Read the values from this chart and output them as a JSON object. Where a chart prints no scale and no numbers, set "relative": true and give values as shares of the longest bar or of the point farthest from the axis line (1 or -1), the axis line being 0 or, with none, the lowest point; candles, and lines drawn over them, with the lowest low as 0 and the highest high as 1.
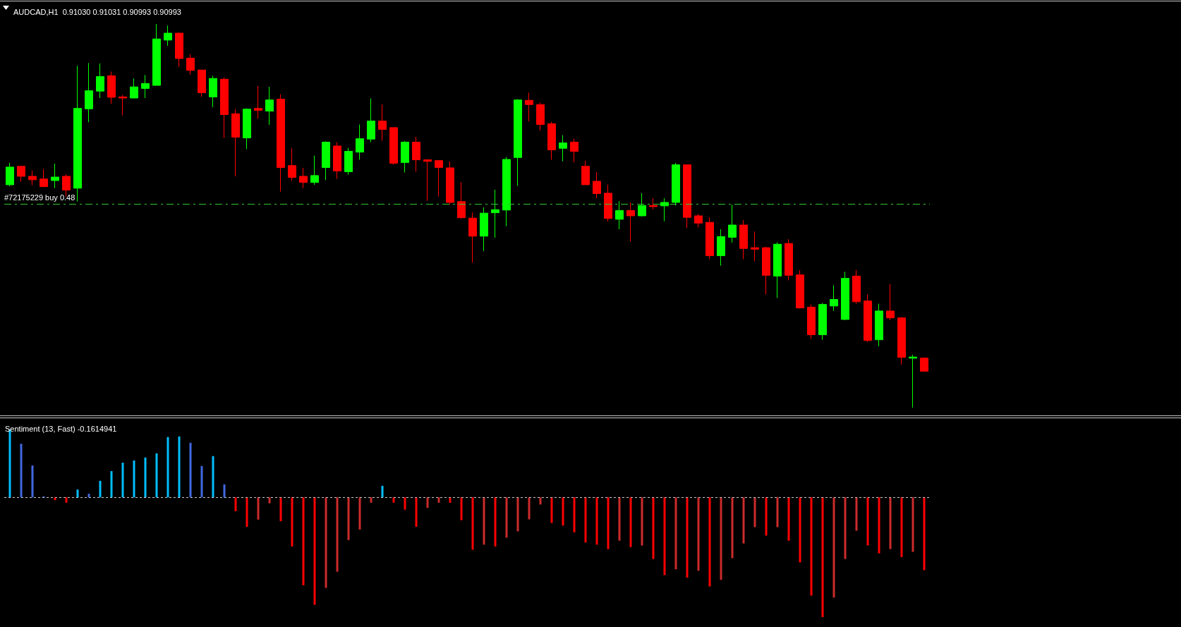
{
  "chart_data": [
    {
      "type": "candlestick",
      "title": "AUDCAD,H1  0.91030 0.91031 0.90993 0.90993",
      "relative": true,
      "categories": [
        null,
        null,
        null,
        null,
        null,
        null,
        null,
        null,
        null,
        null,
        null,
        null,
        null,
        null,
        null,
        null,
        null,
        null,
        null,
        null,
        null,
        null,
        null,
        null,
        null,
        null,
        null,
        null,
        null,
        null,
        null,
        null,
        null,
        null,
        null,
        null,
        null,
        null,
        null,
        null,
        null,
        null,
        null,
        null,
        null,
        null,
        null,
        null,
        null,
        null,
        null,
        null,
        null,
        null,
        null,
        null,
        null,
        null,
        null,
        null,
        null,
        null,
        null,
        null,
        null,
        null,
        null,
        null,
        null,
        null,
        null,
        null,
        null,
        null,
        null,
        null,
        null,
        null,
        null,
        null,
        null,
        null
      ],
      "ohlc": [
        [
          0.581,
          0.638,
          0.577,
          0.627
        ],
        [
          0.629,
          0.629,
          0.589,
          0.603
        ],
        [
          0.603,
          0.618,
          0.58,
          0.594
        ],
        [
          0.596,
          0.622,
          0.576,
          0.576
        ],
        [
          0.592,
          0.636,
          0.572,
          0.601
        ],
        [
          0.603,
          0.608,
          0.55,
          0.567
        ],
        [
          0.572,
          0.891,
          0.537,
          0.78
        ],
        [
          0.779,
          0.898,
          0.744,
          0.826
        ],
        [
          0.825,
          0.897,
          0.807,
          0.863
        ],
        [
          0.865,
          0.876,
          0.792,
          0.809
        ],
        [
          0.81,
          0.815,
          0.762,
          0.807
        ],
        [
          0.807,
          0.858,
          0.807,
          0.836
        ],
        [
          0.832,
          0.867,
          0.807,
          0.845
        ],
        [
          0.84,
          1,
          0.84,
          0.961
        ],
        [
          0.958,
          0.996,
          0.943,
          0.976
        ],
        [
          0.976,
          0.978,
          0.888,
          0.91
        ],
        [
          0.911,
          0.921,
          0.868,
          0.879
        ],
        [
          0.88,
          0.88,
          0.81,
          0.821
        ],
        [
          0.81,
          0.865,
          0.783,
          0.858
        ],
        [
          0.856,
          0.86,
          0.703,
          0.764
        ],
        [
          0.766,
          0.778,
          0.603,
          0.705
        ],
        [
          0.703,
          0.78,
          0.674,
          0.778
        ],
        [
          0.78,
          0.838,
          0.753,
          0.775
        ],
        [
          0.773,
          0.836,
          0.737,
          0.802
        ],
        [
          0.804,
          0.817,
          0.563,
          0.626
        ],
        [
          0.631,
          0.677,
          0.591,
          0.6
        ],
        [
          0.603,
          0.625,
          0.572,
          0.587
        ],
        [
          0.587,
          0.657,
          0.581,
          0.605
        ],
        [
          0.626,
          0.694,
          0.593,
          0.692
        ],
        [
          0.682,
          0.692,
          0.596,
          0.617
        ],
        [
          0.615,
          0.677,
          0.607,
          0.668
        ],
        [
          0.666,
          0.738,
          0.646,
          0.701
        ],
        [
          0.7,
          0.806,
          0.692,
          0.747
        ],
        [
          0.747,
          0.79,
          0.696,
          0.725
        ],
        [
          0.73,
          0.73,
          0.633,
          0.637
        ],
        [
          0.639,
          0.695,
          0.613,
          0.692
        ],
        [
          0.692,
          0.706,
          0.615,
          0.646
        ],
        [
          0.646,
          0.647,
          0.539,
          0.642
        ],
        [
          0.644,
          0.644,
          0.55,
          0.626
        ],
        [
          0.625,
          0.642,
          0.53,
          0.535
        ],
        [
          0.537,
          0.588,
          0.493,
          0.495
        ],
        [
          0.494,
          0.509,
          0.378,
          0.447
        ],
        [
          0.447,
          0.522,
          0.408,
          0.507
        ],
        [
          0.508,
          0.568,
          0.443,
          0.516
        ],
        [
          0.515,
          0.653,
          0.473,
          0.647
        ],
        [
          0.652,
          0.804,
          0.578,
          0.802
        ],
        [
          0.801,
          0.821,
          0.746,
          0.79
        ],
        [
          0.79,
          0.795,
          0.722,
          0.738
        ],
        [
          0.74,
          0.745,
          0.646,
          0.672
        ],
        [
          0.676,
          0.71,
          0.642,
          0.69
        ],
        [
          0.692,
          0.701,
          0.639,
          0.668
        ],
        [
          0.629,
          0.644,
          0.581,
          0.581
        ],
        [
          0.59,
          0.614,
          0.546,
          0.558
        ],
        [
          0.559,
          0.581,
          0.485,
          0.493
        ],
        [
          0.491,
          0.538,
          0.465,
          0.514
        ],
        [
          0.514,
          0.535,
          0.433,
          0.5
        ],
        [
          0.5,
          0.559,
          0.498,
          0.527
        ],
        [
          0.527,
          0.546,
          0.517,
          0.524
        ],
        [
          0.526,
          0.546,
          0.486,
          0.535
        ],
        [
          0.535,
          0.638,
          0.527,
          0.633
        ],
        [
          0.633,
          0.633,
          0.468,
          0.496
        ],
        [
          0.5,
          0.505,
          0.47,
          0.481
        ],
        [
          0.483,
          0.496,
          0.387,
          0.396
        ],
        [
          0.396,
          0.465,
          0.37,
          0.446
        ],
        [
          0.444,
          0.529,
          0.43,
          0.476
        ],
        [
          0.476,
          0.489,
          0.387,
          0.415
        ],
        [
          0.417,
          0.459,
          0.382,
          0.413
        ],
        [
          0.417,
          0.42,
          0.295,
          0.345
        ],
        [
          0.343,
          0.431,
          0.286,
          0.426
        ],
        [
          0.428,
          0.439,
          0.332,
          0.345
        ],
        [
          0.346,
          0.358,
          0.258,
          0.26
        ],
        [
          0.262,
          0.269,
          0.179,
          0.19
        ],
        [
          0.19,
          0.273,
          0.177,
          0.269
        ],
        [
          0.265,
          0.319,
          0.252,
          0.282
        ],
        [
          0.23,
          0.354,
          0.228,
          0.337
        ],
        [
          0.343,
          0.359,
          0.271,
          0.276
        ],
        [
          0.278,
          0.295,
          0.171,
          0.175
        ],
        [
          0.177,
          0.271,
          0.16,
          0.252
        ],
        [
          0.252,
          0.322,
          0.228,
          0.234
        ],
        [
          0.234,
          0.236,
          0.112,
          0.131
        ],
        [
          0.129,
          0.138,
          0,
          0.132
        ],
        [
          0.129,
          0.131,
          0.095,
          0.095
        ]
      ],
      "colors": [
        "#00ff00",
        "#ff0000",
        "#ff0000",
        "#ff0000",
        "#00ff00",
        "#ff0000",
        "#00ff00",
        "#00ff00",
        "#00ff00",
        "#ff0000",
        "#ff0000",
        "#00ff00",
        "#00ff00",
        "#00ff00",
        "#00ff00",
        "#ff0000",
        "#ff0000",
        "#ff0000",
        "#00ff00",
        "#ff0000",
        "#ff0000",
        "#00ff00",
        "#ff0000",
        "#00ff00",
        "#ff0000",
        "#ff0000",
        "#ff0000",
        "#00ff00",
        "#00ff00",
        "#ff0000",
        "#00ff00",
        "#00ff00",
        "#00ff00",
        "#ff0000",
        "#ff0000",
        "#00ff00",
        "#ff0000",
        "#ff0000",
        "#ff0000",
        "#ff0000",
        "#ff0000",
        "#ff0000",
        "#00ff00",
        "#00ff00",
        "#00ff00",
        "#00ff00",
        "#ff0000",
        "#ff0000",
        "#ff0000",
        "#00ff00",
        "#ff0000",
        "#ff0000",
        "#ff0000",
        "#ff0000",
        "#00ff00",
        "#ff0000",
        "#00ff00",
        "#ff0000",
        "#00ff00",
        "#00ff00",
        "#ff0000",
        "#ff0000",
        "#ff0000",
        "#00ff00",
        "#00ff00",
        "#ff0000",
        "#ff0000",
        "#ff0000",
        "#00ff00",
        "#ff0000",
        "#ff0000",
        "#ff0000",
        "#00ff00",
        "#00ff00",
        "#00ff00",
        "#ff0000",
        "#ff0000",
        "#00ff00",
        "#ff0000",
        "#ff0000",
        "#00ff00",
        "#ff0000"
      ],
      "ref_lines": [
        {
          "axis": "y",
          "value": 0.532,
          "label": "#72175229 buy 0.48",
          "color": "#32c832",
          "line_style": "dashed"
        }
      ]
    },
    {
      "type": "bar",
      "title": "Sentiment (13, Fast) -0.1614941",
      "relative": true,
      "categories": [
        null,
        null,
        null,
        null,
        null,
        null,
        null,
        null,
        null,
        null,
        null,
        null,
        null,
        null,
        null,
        null,
        null,
        null,
        null,
        null,
        null,
        null,
        null,
        null,
        null,
        null,
        null,
        null,
        null,
        null,
        null,
        null,
        null,
        null,
        null,
        null,
        null,
        null,
        null,
        null,
        null,
        null,
        null,
        null,
        null,
        null,
        null,
        null,
        null,
        null,
        null,
        null,
        null,
        null,
        null,
        null,
        null,
        null,
        null,
        null,
        null,
        null,
        null,
        null,
        null,
        null,
        null,
        null,
        null,
        null,
        null,
        null,
        null,
        null,
        null,
        null,
        null,
        null,
        null,
        null,
        null,
        null
      ],
      "values": [
        0.566,
        0.447,
        0.266,
        0.008,
        -0.023,
        -0.045,
        0.065,
        0.03,
        0.138,
        0.219,
        0.289,
        0.307,
        0.332,
        0.367,
        0.503,
        0.508,
        0.455,
        0.261,
        0.344,
        0.108,
        -0.116,
        -0.246,
        -0.186,
        -0.05,
        -0.199,
        -0.41,
        -0.734,
        -0.897,
        -0.756,
        -0.621,
        -0.357,
        -0.269,
        -0.045,
        0.096,
        -0.045,
        -0.103,
        -0.246,
        -0.088,
        -0.045,
        -0.045,
        -0.191,
        -0.437,
        -0.395,
        -0.41,
        -0.337,
        -0.284,
        -0.184,
        -0.06,
        -0.214,
        -0.236,
        -0.292,
        -0.377,
        -0.395,
        -0.432,
        -0.362,
        -0.415,
        -0.402,
        -0.515,
        -0.649,
        -0.601,
        -0.671,
        -0.613,
        -0.744,
        -0.689,
        -0.508,
        -0.385,
        -0.249,
        -0.319,
        -0.249,
        -0.362,
        -0.543,
        -0.82,
        -1,
        -0.837,
        -0.515,
        -0.279,
        -0.402,
        -0.468,
        -0.432,
        -0.498,
        -0.455,
        -0.608
      ],
      "colors": [
        "#00bfff",
        "#4169e1",
        "#4169e1",
        "#4169e1",
        "#ff0000",
        "#ff0000",
        "#00bfff",
        "#4169e1",
        "#00bfff",
        "#00bfff",
        "#00bfff",
        "#00bfff",
        "#00bfff",
        "#00bfff",
        "#00bfff",
        "#00bfff",
        "#4169e1",
        "#4169e1",
        "#00bfff",
        "#4169e1",
        "#ff0000",
        "#ff0000",
        "#cd2b2b",
        "#cd2b2b",
        "#ff0000",
        "#ff0000",
        "#ff0000",
        "#ff0000",
        "#cd2b2b",
        "#cd2b2b",
        "#cd2b2b",
        "#cd2b2b",
        "#cd2b2b",
        "#00bfff",
        "#ff0000",
        "#ff0000",
        "#ff0000",
        "#cd2b2b",
        "#cd2b2b",
        "#ff0000",
        "#ff0000",
        "#ff0000",
        "#cd2b2b",
        "#ff0000",
        "#cd2b2b",
        "#cd2b2b",
        "#cd2b2b",
        "#cd2b2b",
        "#ff0000",
        "#ff0000",
        "#ff0000",
        "#ff0000",
        "#ff0000",
        "#ff0000",
        "#cd2b2b",
        "#ff0000",
        "#cd2b2b",
        "#ff0000",
        "#ff0000",
        "#cd2b2b",
        "#ff0000",
        "#cd2b2b",
        "#ff0000",
        "#cd2b2b",
        "#cd2b2b",
        "#cd2b2b",
        "#cd2b2b",
        "#ff0000",
        "#cd2b2b",
        "#ff0000",
        "#ff0000",
        "#ff0000",
        "#ff0000",
        "#cd2b2b",
        "#cd2b2b",
        "#cd2b2b",
        "#ff0000",
        "#ff0000",
        "#cd2b2b",
        "#ff0000",
        "#cd2b2b",
        "#ff0000"
      ],
      "ref_lines": [
        {
          "axis": "y",
          "value": 0,
          "color": "#c8c8c8",
          "line_style": "dotted"
        }
      ]
    }
  ]
}
